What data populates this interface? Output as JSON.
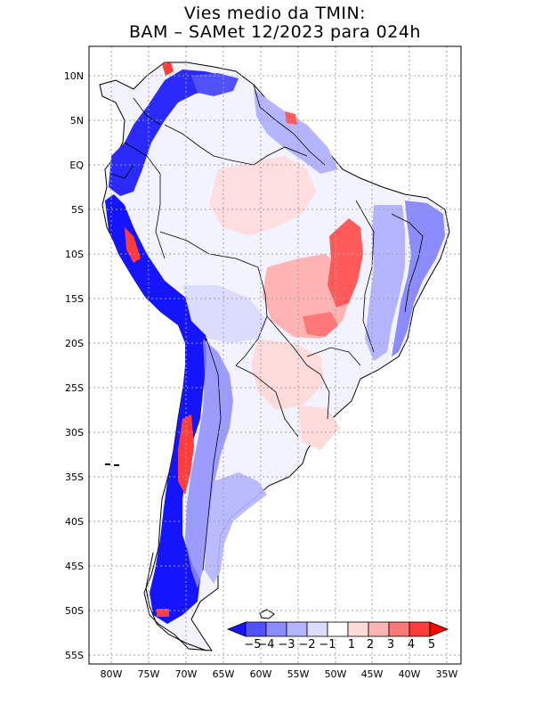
{
  "title": {
    "line1": "Vies medio da TMIN:",
    "line2": "BAM – SAMet 12/2023  para 024h"
  },
  "axes": {
    "lat_labels": [
      "10N",
      "5N",
      "EQ",
      "5S",
      "10S",
      "15S",
      "20S",
      "25S",
      "30S",
      "35S",
      "40S",
      "45S",
      "50S",
      "55S"
    ],
    "lon_labels": [
      "80W",
      "75W",
      "70W",
      "65W",
      "60W",
      "55W",
      "50W",
      "45W",
      "40W",
      "35W"
    ],
    "lat_range": [
      -55.5,
      12
    ],
    "lon_range": [
      -83,
      -34
    ]
  },
  "colorbar": {
    "labels": [
      "−5",
      "−4",
      "−3",
      "−2",
      "−1",
      "1",
      "2",
      "3",
      "4",
      "5"
    ],
    "colors": [
      "#1414ff",
      "#5050ff",
      "#8c8cff",
      "#b4b4ff",
      "#dcdcff",
      "#ffffff",
      "#ffdcdc",
      "#ffb4b4",
      "#ff7878",
      "#ff3c3c",
      "#ff0000"
    ]
  }
}
